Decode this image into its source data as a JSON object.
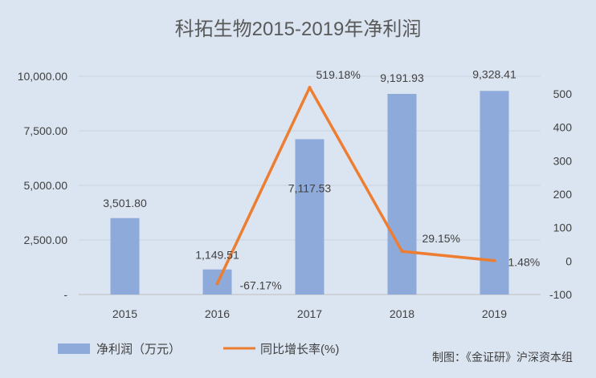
{
  "chart_data": {
    "type": "bar",
    "title": "科拓生物2015-2019年净利润",
    "categories": [
      "2015",
      "2016",
      "2017",
      "2018",
      "2019"
    ],
    "series": [
      {
        "name": "净利润（万元）",
        "type": "bar",
        "axis": "left",
        "values": [
          3501.8,
          1149.51,
          7117.53,
          9191.93,
          9328.41
        ],
        "labels": [
          "3,501.80",
          "1,149.51",
          "7,117.53",
          "9,191.93",
          "9,328.41"
        ],
        "color": "#8eaadb"
      },
      {
        "name": "同比增长率(%)",
        "type": "line",
        "axis": "right",
        "values": [
          null,
          -67.17,
          519.18,
          29.15,
          1.48
        ],
        "labels": [
          "",
          "-67.17%",
          "519.18%",
          "29.15%",
          "1.48%"
        ],
        "color": "#ed7d31"
      }
    ],
    "y_left": {
      "range": [
        0,
        10000
      ],
      "ticks": [
        0,
        2500,
        5000,
        7500,
        10000
      ],
      "tick_labels": [
        "-",
        "2,500.00",
        "5,000.00",
        "7,500.00",
        "10,000.00"
      ]
    },
    "y_right": {
      "range": [
        -100,
        550
      ],
      "ticks": [
        -100,
        0,
        100,
        200,
        300,
        400,
        500
      ],
      "tick_labels": [
        "-100",
        "0",
        "100",
        "200",
        "300",
        "400",
        "500"
      ]
    },
    "grid": true,
    "legend_position": "bottom-left",
    "source_note": "制图：《金证研》沪深资本组"
  }
}
